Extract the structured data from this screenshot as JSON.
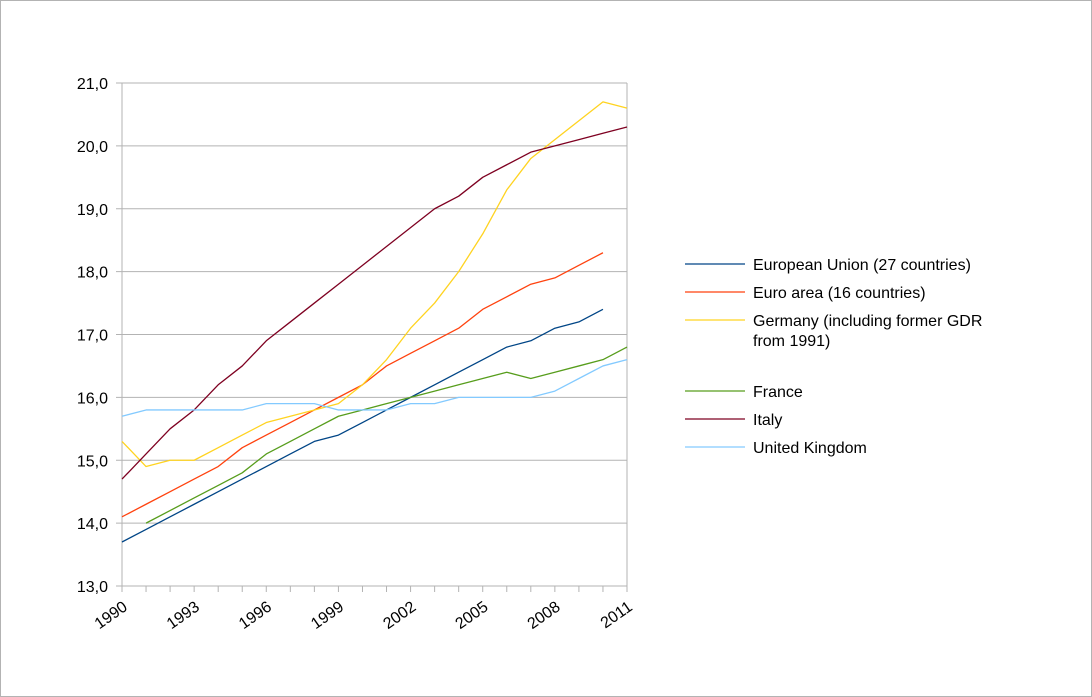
{
  "chart_data": {
    "type": "line",
    "title": "",
    "xlabel": "",
    "ylabel": "",
    "x": [
      1990,
      1991,
      1992,
      1993,
      1994,
      1995,
      1996,
      1997,
      1998,
      1999,
      2000,
      2001,
      2002,
      2003,
      2004,
      2005,
      2006,
      2007,
      2008,
      2009,
      2010,
      2011
    ],
    "xticks": [
      "1990",
      "1993",
      "1996",
      "1999",
      "2002",
      "2005",
      "2008",
      "2011"
    ],
    "yticks": [
      "13,0",
      "14,0",
      "15,0",
      "16,0",
      "17,0",
      "18,0",
      "19,0",
      "20,0",
      "21,0"
    ],
    "ylim": [
      13,
      21
    ],
    "grid": "horizontal",
    "legend": "right",
    "series": [
      {
        "name": "European Union (27 countries)",
        "color": "#004586",
        "values": [
          13.7,
          13.9,
          14.1,
          14.3,
          14.5,
          14.7,
          14.9,
          15.1,
          15.3,
          15.4,
          15.6,
          15.8,
          16.0,
          16.2,
          16.4,
          16.6,
          16.8,
          16.9,
          17.1,
          17.2,
          17.4,
          null
        ]
      },
      {
        "name": "Euro area (16 countries)",
        "color": "#ff420e",
        "values": [
          14.1,
          14.3,
          14.5,
          14.7,
          14.9,
          15.2,
          15.4,
          15.6,
          15.8,
          16.0,
          16.2,
          16.5,
          16.7,
          16.9,
          17.1,
          17.4,
          17.6,
          17.8,
          17.9,
          18.1,
          18.3,
          null
        ]
      },
      {
        "name": "Germany (including  former GDR from 1991)",
        "name_lines": [
          "Germany (including  former GDR",
          "from 1991)"
        ],
        "color": "#ffd320",
        "values": [
          15.3,
          14.9,
          15.0,
          15.0,
          15.2,
          15.4,
          15.6,
          15.7,
          15.8,
          15.9,
          16.2,
          16.6,
          17.1,
          17.5,
          18.0,
          18.6,
          19.3,
          19.8,
          20.1,
          20.4,
          20.7,
          20.6
        ]
      },
      {
        "name": "France",
        "color": "#579d1c",
        "values": [
          null,
          14.0,
          14.2,
          14.4,
          14.6,
          14.8,
          15.1,
          15.3,
          15.5,
          15.7,
          15.8,
          15.9,
          16.0,
          16.1,
          16.2,
          16.3,
          16.4,
          16.3,
          16.4,
          16.5,
          16.6,
          16.8
        ]
      },
      {
        "name": "Italy",
        "color": "#7e0021",
        "values": [
          14.7,
          15.1,
          15.5,
          15.8,
          16.2,
          16.5,
          16.9,
          17.2,
          17.5,
          17.8,
          18.1,
          18.4,
          18.7,
          19.0,
          19.2,
          19.5,
          19.7,
          19.9,
          20.0,
          20.1,
          20.2,
          20.3
        ]
      },
      {
        "name": "United Kingdom",
        "color": "#83caff",
        "values": [
          15.7,
          15.8,
          15.8,
          15.8,
          15.8,
          15.8,
          15.9,
          15.9,
          15.9,
          15.8,
          15.8,
          15.8,
          15.9,
          15.9,
          16.0,
          16.0,
          16.0,
          16.0,
          16.1,
          16.3,
          16.5,
          16.6
        ]
      }
    ]
  }
}
